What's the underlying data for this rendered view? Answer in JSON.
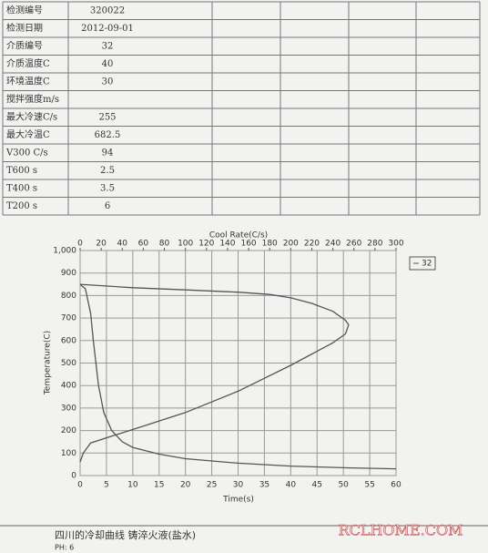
{
  "table": {
    "rows": [
      [
        "检测编号",
        "320022"
      ],
      [
        "检测日期",
        "2012-09-01"
      ],
      [
        "介质编号",
        "32"
      ],
      [
        "介质温度C",
        "40"
      ],
      [
        "环境温度C",
        "30"
      ],
      [
        "搅拌强度m/s",
        null
      ],
      [
        "最大冷速C/s",
        "255"
      ],
      [
        "最大冷温C",
        "682.5"
      ],
      [
        "V300 C/s",
        "94"
      ],
      [
        "T600 s",
        "2.5"
      ],
      [
        "T400 s",
        "3.5"
      ],
      [
        "T200 s",
        "6"
      ]
    ]
  },
  "chart_data": {
    "type": "line",
    "x_label": "Time(s)",
    "x2_label": "Cool Rate(C/s)",
    "y_label": "Temperature(C)",
    "xlim": [
      0,
      60
    ],
    "xticks": [
      0,
      5,
      10,
      15,
      20,
      25,
      30,
      35,
      40,
      45,
      50,
      55,
      60
    ],
    "x2lim": [
      0,
      300
    ],
    "x2ticks": [
      0,
      20,
      40,
      60,
      80,
      100,
      120,
      140,
      160,
      180,
      200,
      220,
      240,
      260,
      280,
      300
    ],
    "ylim": [
      0,
      1000
    ],
    "yticks": [
      0,
      100,
      200,
      300,
      400,
      500,
      600,
      700,
      800,
      900,
      {
        "value": 1000,
        "label": "1,000"
      }
    ],
    "grid": true,
    "legend": "right",
    "color": "#555555",
    "series": [
      {
        "name": "32",
        "x": [
          0,
          1,
          2,
          2.5,
          3.5,
          4.5,
          6,
          8,
          10,
          15,
          20,
          30,
          40,
          50,
          60
        ],
        "values": [
          850,
          830,
          720,
          600,
          400,
          280,
          200,
          150,
          125,
          95,
          75,
          55,
          42,
          35,
          30
        ]
      },
      {
        "axis": "x2",
        "x": [
          0,
          50,
          100,
          150,
          180,
          200,
          220,
          240,
          252,
          255,
          252,
          240,
          200,
          150,
          100,
          60,
          30,
          10,
          3,
          0
        ],
        "values": [
          850,
          835,
          825,
          815,
          805,
          790,
          765,
          730,
          690,
          670,
          630,
          590,
          490,
          375,
          280,
          220,
          175,
          145,
          100,
          60
        ]
      }
    ]
  },
  "footer": {
    "note": "四川的冷却曲线 铸淬火液(盐水)",
    "ph": "PH: 6",
    "watermark": "RCLHOME.COM"
  }
}
